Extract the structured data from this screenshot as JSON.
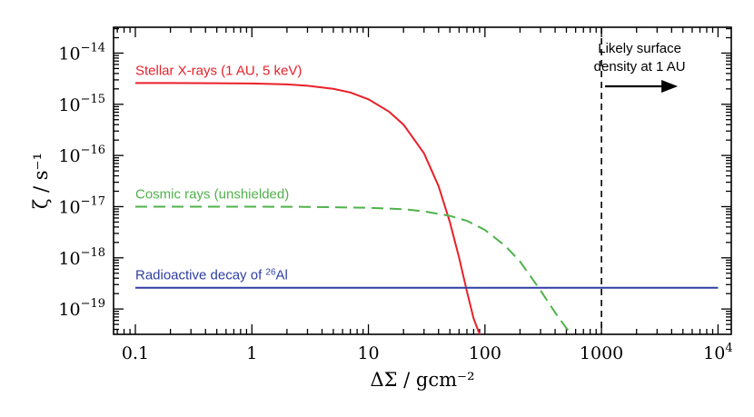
{
  "chart_data": {
    "type": "line",
    "x_scale": "log",
    "y_scale": "log",
    "xlim": [
      0.065,
      13000
    ],
    "ylim": [
      3.2e-20,
      3.2e-14
    ],
    "xlabel": "ΔΣ / gcm⁻²",
    "ylabel": "ζ / s⁻¹",
    "x_ticks": [
      {
        "value": 0.1,
        "label": "0.1"
      },
      {
        "value": 1,
        "label": "1"
      },
      {
        "value": 10,
        "label": "10"
      },
      {
        "value": 100,
        "label": "100"
      },
      {
        "value": 1000,
        "label": "1000"
      },
      {
        "value": 10000,
        "label": "10",
        "sup": "4"
      }
    ],
    "y_ticks": [
      {
        "value": 1e-19,
        "label": "10",
        "sup": "−19"
      },
      {
        "value": 1e-18,
        "label": "10",
        "sup": "−18"
      },
      {
        "value": 1e-17,
        "label": "10",
        "sup": "−17"
      },
      {
        "value": 1e-16,
        "label": "10",
        "sup": "−16"
      },
      {
        "value": 1e-15,
        "label": "10",
        "sup": "−15"
      },
      {
        "value": 1e-14,
        "label": "10",
        "sup": "−14"
      }
    ],
    "series": [
      {
        "name": "Stellar X-rays (1 AU, 5 keV)",
        "color": "#e8202a",
        "style": "solid",
        "x": [
          0.1,
          0.2,
          0.5,
          1,
          2,
          3,
          5,
          7,
          10,
          15,
          20,
          30,
          40,
          50,
          60,
          70,
          80,
          90
        ],
        "y": [
          2.6e-15,
          2.6e-15,
          2.58e-15,
          2.55e-15,
          2.45e-15,
          2.3e-15,
          2e-15,
          1.7e-15,
          1.25e-15,
          7.2e-16,
          4e-16,
          1.1e-16,
          2.5e-17,
          5e-18,
          1e-18,
          2.2e-19,
          6.5e-20,
          3.2e-20
        ]
      },
      {
        "name": "Cosmic rays (unshielded)",
        "color": "#4fb24a",
        "style": "dashed",
        "x": [
          0.1,
          1,
          3,
          10,
          20,
          30,
          50,
          70,
          100,
          150,
          200,
          300,
          400,
          500,
          560
        ],
        "y": [
          1e-17,
          1e-17,
          9.9e-18,
          9.5e-18,
          8.9e-18,
          8.1e-18,
          6.6e-18,
          5.3e-18,
          3.5e-18,
          1.7e-18,
          8.5e-19,
          2.3e-19,
          8.5e-20,
          4.2e-20,
          3.2e-20
        ]
      },
      {
        "name": "Radioactive decay of 26Al",
        "label_prefix": "Radioactive decay of ",
        "label_sup": "26",
        "label_suffix": "Al",
        "color": "#2f3fa3",
        "style": "solid",
        "x": [
          0.1,
          10000
        ],
        "y": [
          2.6e-19,
          2.6e-19
        ]
      }
    ],
    "annotations": {
      "vline_x": 1000,
      "note_lines": [
        "Likely surface",
        "density at 1 AU"
      ],
      "arrow": "right"
    },
    "grid": false,
    "legend": "none"
  }
}
